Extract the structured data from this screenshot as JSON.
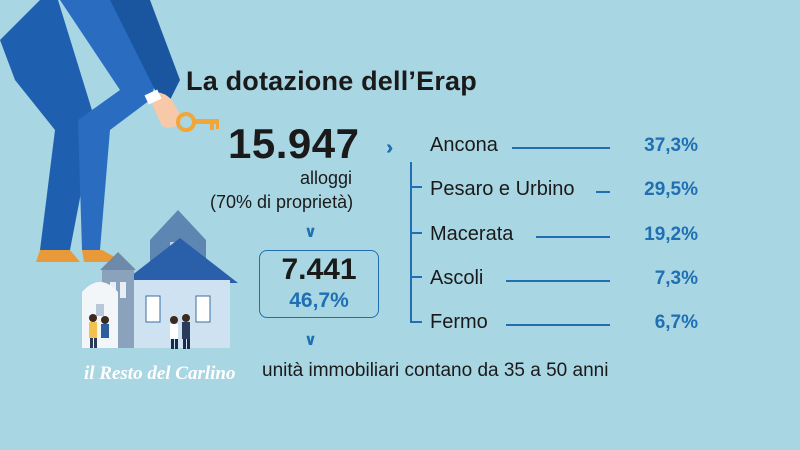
{
  "title": "La dotazione dell’Erap",
  "total": {
    "value": "15.947",
    "unit": "alloggi",
    "note": "(70% di proprietà)"
  },
  "old": {
    "value": "7.441",
    "percent": "46,7%",
    "caption": "unità immobiliari contano da 35 a 50 anni"
  },
  "provinces": [
    {
      "name": "Ancona",
      "percent": "37,3%"
    },
    {
      "name": "Pesaro e Urbino",
      "percent": "29,5%"
    },
    {
      "name": "Macerata",
      "percent": "19,2%"
    },
    {
      "name": "Ascoli",
      "percent": "7,3%"
    },
    {
      "name": "Fermo",
      "percent": "6,7%"
    }
  ],
  "logo": "il Resto del Carlino",
  "icons": {
    "chevron_right": "››",
    "chevron_down": "∨"
  },
  "colors": {
    "background": "#a9d6e3",
    "accent": "#1f6fb2",
    "text": "#1a1a1a"
  }
}
